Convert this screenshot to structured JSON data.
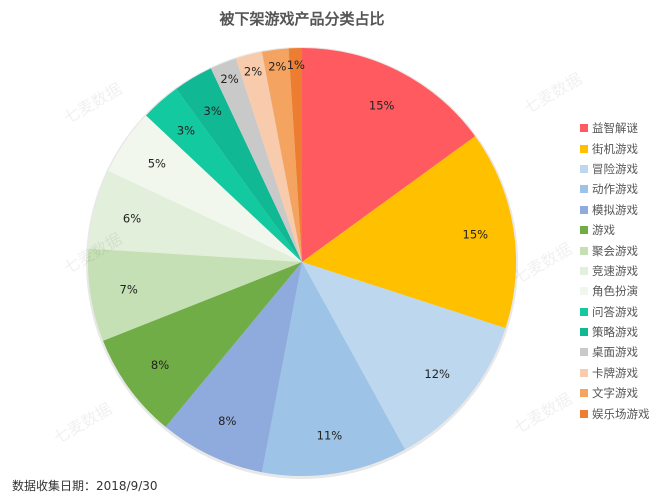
{
  "chart_data": {
    "type": "pie",
    "title": "被下架游戏产品分类占比",
    "start_angle": "12 o'clock",
    "direction": "clockwise",
    "legend_position": "right",
    "categories": [
      "益智解谜",
      "街机游戏",
      "冒险游戏",
      "动作游戏",
      "模拟游戏",
      "游戏",
      "聚会游戏",
      "竞速游戏",
      "角色扮演",
      "问答游戏",
      "策略游戏",
      "桌面游戏",
      "卡牌游戏",
      "文字游戏",
      "娱乐场游戏"
    ],
    "values": [
      15,
      15,
      12,
      11,
      8,
      8,
      7,
      6,
      5,
      3,
      3,
      2,
      2,
      2,
      1
    ],
    "labels": [
      "15%",
      "15%",
      "12%",
      "11%",
      "8%",
      "8%",
      "7%",
      "6%",
      "5%",
      "3%",
      "3%",
      "2%",
      "2%",
      "2%",
      "1%"
    ],
    "colors": [
      "#FF5A5F",
      "#FFC000",
      "#BDD7EE",
      "#9DC3E6",
      "#8FAADC",
      "#70AD47",
      "#C5E0B4",
      "#E2EFDA",
      "#F2F7EE",
      "#12C9A0",
      "#10B894",
      "#C9C9C9",
      "#F8CBAD",
      "#F4A460",
      "#ED7D31"
    ],
    "unit": "%"
  },
  "header": {
    "title": "被下架游戏产品分类占比"
  },
  "footer": {
    "text": "数据收集日期：2018/9/30"
  },
  "watermark": {
    "text": "七麦数据"
  }
}
